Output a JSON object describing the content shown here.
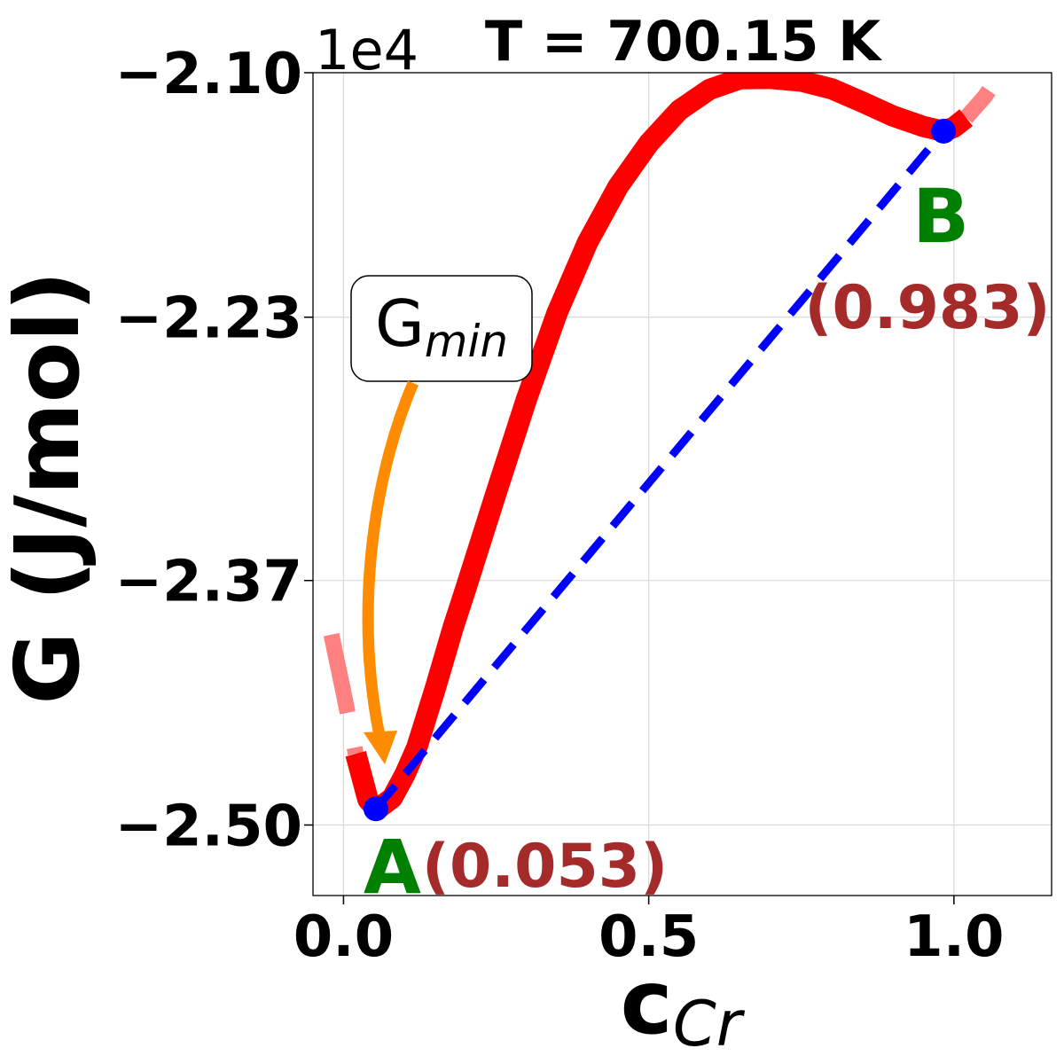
{
  "chart_data": {
    "type": "line",
    "title": "T = 700.15 K",
    "xlabel": {
      "base": "c",
      "subscript": "Cr"
    },
    "ylabel": "G (J/mol)",
    "y_multiplier": "1e4",
    "xlim": [
      -0.05,
      1.16
    ],
    "ylim": [
      -2.5375,
      -2.1
    ],
    "x_ticks": [
      0.0,
      0.5,
      1.0
    ],
    "x_tick_labels": [
      "0.0",
      "0.5",
      "1.0"
    ],
    "y_ticks": [
      -2.1,
      -2.23,
      -2.37,
      -2.5
    ],
    "y_tick_labels": [
      "−2.10",
      "−2.23",
      "−2.37",
      "−2.50"
    ],
    "grid": true,
    "series": [
      {
        "role": "free-energy-curve",
        "color": "#ff0000",
        "x": [
          -0.02,
          0.0,
          0.02,
          0.04,
          0.053,
          0.06,
          0.08,
          0.1,
          0.12,
          0.15,
          0.18,
          0.2,
          0.25,
          0.3,
          0.35,
          0.4,
          0.45,
          0.5,
          0.55,
          0.6,
          0.65,
          0.7,
          0.75,
          0.8,
          0.85,
          0.9,
          0.95,
          0.983,
          1.0,
          1.02,
          1.05,
          1.08,
          1.11
        ],
        "y": [
          -2.3988,
          -2.4295,
          -2.4621,
          -2.4865,
          -2.4914,
          -2.4905,
          -2.4855,
          -2.4735,
          -2.4589,
          -2.4277,
          -2.3946,
          -2.3746,
          -2.3235,
          -2.2733,
          -2.2276,
          -2.1901,
          -2.1605,
          -2.1376,
          -2.1199,
          -2.1088,
          -2.1032,
          -2.103,
          -2.1045,
          -2.1086,
          -2.1156,
          -2.123,
          -2.1286,
          -2.1311,
          -2.129,
          -2.1239,
          -2.1129,
          -2.0985,
          -2.082
        ]
      },
      {
        "role": "common-tangent",
        "color": "#0000ff",
        "x": [
          0.053,
          0.983
        ],
        "y": [
          -2.4914,
          -2.1311
        ]
      }
    ],
    "points": [
      {
        "label": "A",
        "value_label": "(0.053)",
        "x": 0.053,
        "y": -2.4914,
        "color": "#0000ff"
      },
      {
        "label": "B",
        "value_label": "(0.983)",
        "x": 0.983,
        "y": -2.1311,
        "color": "#0000ff"
      }
    ],
    "annotation": {
      "text": "G",
      "subscript": "min",
      "arrow_color": "#ff8c00",
      "target": "A"
    },
    "colors": {
      "curve": "#ff0000",
      "curve_faded": "#ff8080",
      "tangent": "#0000ff",
      "point_label": "#008000",
      "point_value": "#a52a2a",
      "arrow": "#ff8c00"
    }
  }
}
